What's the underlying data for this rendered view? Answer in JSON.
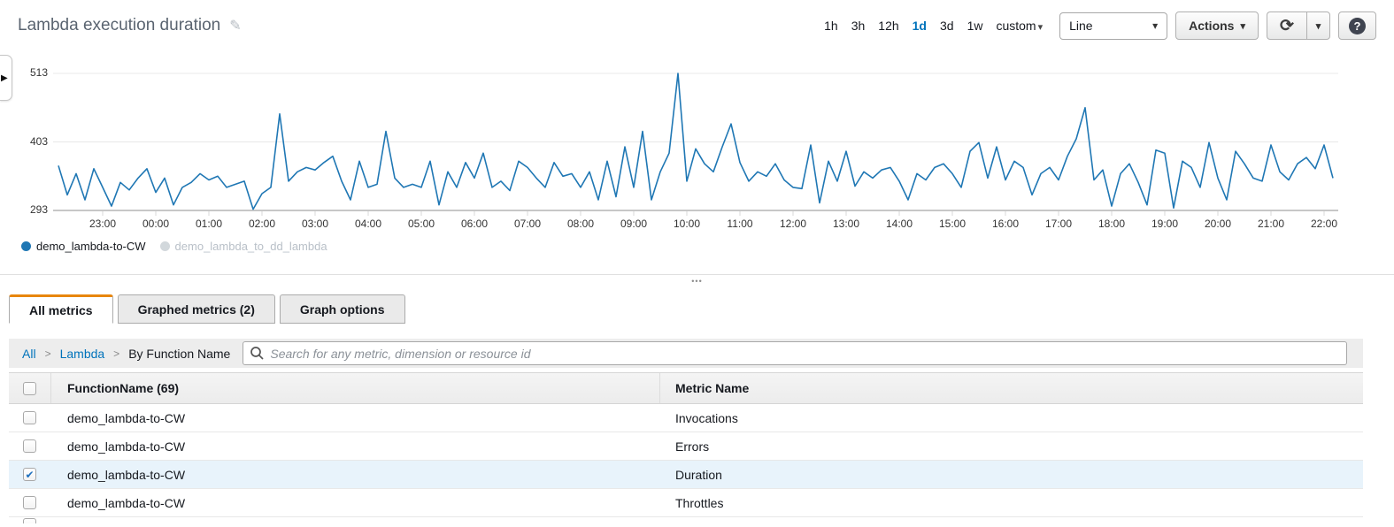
{
  "icons": {
    "edit": "✎",
    "caret_down": "▾",
    "expand": "▶",
    "refresh": "⟳",
    "help": "?",
    "check": "✔",
    "dots": "•••"
  },
  "header": {
    "title": "Lambda execution duration"
  },
  "toolbar": {
    "time_ranges": [
      {
        "label": "1h",
        "active": false
      },
      {
        "label": "3h",
        "active": false
      },
      {
        "label": "12h",
        "active": false
      },
      {
        "label": "1d",
        "active": true
      },
      {
        "label": "3d",
        "active": false
      },
      {
        "label": "1w",
        "active": false
      },
      {
        "label": "custom",
        "active": false,
        "has_caret": true
      }
    ],
    "chart_type_value": "Line",
    "actions_label": "Actions"
  },
  "chart_data": {
    "type": "line",
    "title": "Lambda execution duration",
    "ylim": [
      293,
      513
    ],
    "y_ticks": [
      513,
      403,
      293
    ],
    "x_tick_labels": [
      "23:00",
      "00:00",
      "01:00",
      "02:00",
      "03:00",
      "04:00",
      "05:00",
      "06:00",
      "07:00",
      "08:00",
      "09:00",
      "10:00",
      "11:00",
      "12:00",
      "13:00",
      "14:00",
      "15:00",
      "16:00",
      "17:00",
      "18:00",
      "19:00",
      "20:00",
      "21:00",
      "22:00"
    ],
    "x_start": "22:10",
    "x_interval_minutes": 10,
    "legend_position": "bottom-left",
    "grid": true,
    "series": [
      {
        "name": "demo_lambda-to-CW",
        "color": "#1f77b4",
        "hidden": false,
        "values": [
          365,
          318,
          352,
          310,
          360,
          330,
          300,
          338,
          326,
          345,
          360,
          322,
          345,
          302,
          330,
          338,
          352,
          342,
          348,
          330,
          335,
          340,
          295,
          320,
          330,
          448,
          340,
          355,
          362,
          358,
          370,
          380,
          340,
          310,
          372,
          330,
          335,
          420,
          345,
          330,
          335,
          330,
          372,
          302,
          355,
          330,
          370,
          345,
          385,
          330,
          340,
          325,
          372,
          362,
          345,
          330,
          370,
          348,
          352,
          330,
          355,
          310,
          372,
          315,
          395,
          330,
          420,
          310,
          355,
          385,
          513,
          340,
          392,
          368,
          355,
          395,
          432,
          370,
          340,
          355,
          348,
          368,
          342,
          330,
          328,
          398,
          305,
          372,
          340,
          388,
          332,
          355,
          345,
          358,
          362,
          340,
          310,
          352,
          342,
          362,
          368,
          352,
          330,
          388,
          402,
          345,
          395,
          342,
          372,
          362,
          318,
          352,
          362,
          342,
          380,
          408,
          458,
          342,
          358,
          300,
          352,
          368,
          338,
          302,
          390,
          385,
          297,
          372,
          362,
          330,
          402,
          345,
          310,
          388,
          368,
          345,
          340,
          398,
          355,
          342,
          368,
          378,
          360,
          398,
          345
        ]
      },
      {
        "name": "demo_lambda_to_dd_lambda",
        "color": "#d2d8dc",
        "hidden": true,
        "values": []
      }
    ]
  },
  "legend": [
    {
      "label": "demo_lambda-to-CW",
      "color": "#1f77b4",
      "active": true
    },
    {
      "label": "demo_lambda_to_dd_lambda",
      "color": "#d2d8dc",
      "active": false
    }
  ],
  "tabs": [
    {
      "label": "All metrics",
      "active": true
    },
    {
      "label": "Graphed metrics (2)",
      "active": false
    },
    {
      "label": "Graph options",
      "active": false
    }
  ],
  "breadcrumb": {
    "items": [
      {
        "label": "All",
        "link": true
      },
      {
        "label": "Lambda",
        "link": true
      },
      {
        "label": "By Function Name",
        "link": false
      }
    ],
    "separator": ">"
  },
  "search": {
    "placeholder": "Search for any metric, dimension or resource id"
  },
  "table": {
    "columns": {
      "function": "FunctionName  (69)",
      "metric": "Metric Name"
    },
    "rows": [
      {
        "function": "demo_lambda-to-CW",
        "metric": "Invocations",
        "checked": false,
        "selected": false
      },
      {
        "function": "demo_lambda-to-CW",
        "metric": "Errors",
        "checked": false,
        "selected": false
      },
      {
        "function": "demo_lambda-to-CW",
        "metric": "Duration",
        "checked": true,
        "selected": true
      },
      {
        "function": "demo_lambda-to-CW",
        "metric": "Throttles",
        "checked": false,
        "selected": false
      }
    ]
  },
  "colors": {
    "accent_orange": "#e8860d",
    "link_blue": "#0073bb",
    "line_blue": "#1f77b4",
    "selected_row": "#e8f3fb"
  }
}
